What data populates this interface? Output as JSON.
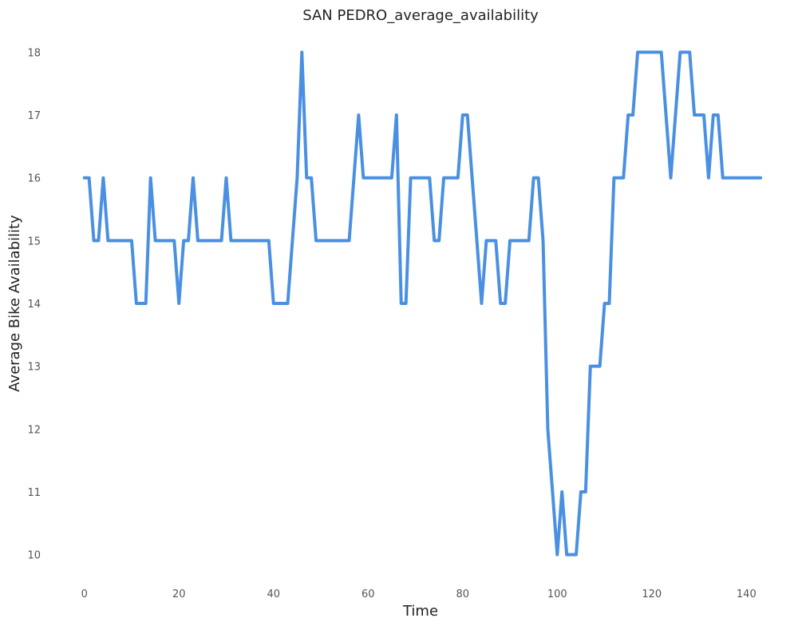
{
  "chart_data": {
    "type": "line",
    "title": "SAN PEDRO_average_availability",
    "xlabel": "Time",
    "ylabel": "Average Bike Availability",
    "xlim": [
      -4,
      144.5
    ],
    "ylim": [
      9.55,
      18.45
    ],
    "grid": false,
    "legend": "none",
    "xticks": [
      0,
      20,
      40,
      60,
      80,
      100,
      120,
      140
    ],
    "yticks": [
      10,
      11,
      12,
      13,
      14,
      15,
      16,
      17,
      18
    ],
    "series": [
      {
        "color": "#4a90e2",
        "x": [
          0,
          1,
          2,
          3,
          4,
          5,
          6,
          7,
          8,
          9,
          10,
          11,
          12,
          13,
          14,
          15,
          16,
          17,
          18,
          19,
          20,
          21,
          22,
          23,
          24,
          25,
          26,
          27,
          28,
          29,
          30,
          31,
          32,
          33,
          34,
          35,
          36,
          37,
          38,
          39,
          40,
          41,
          42,
          43,
          44,
          45,
          46,
          47,
          48,
          49,
          50,
          51,
          52,
          53,
          54,
          55,
          56,
          57,
          58,
          59,
          60,
          61,
          62,
          63,
          64,
          65,
          66,
          67,
          68,
          69,
          70,
          71,
          72,
          73,
          74,
          75,
          76,
          77,
          78,
          79,
          80,
          81,
          82,
          83,
          84,
          85,
          86,
          87,
          88,
          89,
          90,
          91,
          92,
          93,
          94,
          95,
          96,
          97,
          98,
          99,
          100,
          101,
          102,
          103,
          104,
          105,
          106,
          107,
          108,
          109,
          110,
          111,
          112,
          113,
          114,
          115,
          116,
          117,
          118,
          119,
          120,
          121,
          122,
          123,
          124,
          125,
          126,
          127,
          128,
          129,
          130,
          131,
          132,
          133,
          134,
          135,
          136,
          137,
          138,
          139,
          140,
          141,
          142,
          143
        ],
        "y": [
          16,
          16,
          15,
          15,
          16,
          15,
          15,
          15,
          15,
          15,
          15,
          14,
          14,
          14,
          16,
          15,
          15,
          15,
          15,
          15,
          14,
          15,
          15,
          16,
          15,
          15,
          15,
          15,
          15,
          15,
          16,
          15,
          15,
          15,
          15,
          15,
          15,
          15,
          15,
          15,
          14,
          14,
          14,
          14,
          15,
          16,
          18,
          16,
          16,
          15,
          15,
          15,
          15,
          15,
          15,
          15,
          15,
          16,
          17,
          16,
          16,
          16,
          16,
          16,
          16,
          16,
          17,
          14,
          14,
          16,
          16,
          16,
          16,
          16,
          15,
          15,
          16,
          16,
          16,
          16,
          17,
          17,
          16,
          15,
          14,
          15,
          15,
          15,
          14,
          14,
          15,
          15,
          15,
          15,
          15,
          16,
          16,
          15,
          12,
          11,
          10,
          11,
          10,
          10,
          10,
          11,
          11,
          13,
          13,
          13,
          14,
          14,
          16,
          16,
          16,
          17,
          17,
          18,
          18,
          18,
          18,
          18,
          18,
          17,
          16,
          17,
          18,
          18,
          18,
          17,
          17,
          17,
          16,
          17,
          17,
          16,
          16,
          16,
          16,
          16,
          16,
          16,
          16,
          16
        ]
      }
    ]
  }
}
